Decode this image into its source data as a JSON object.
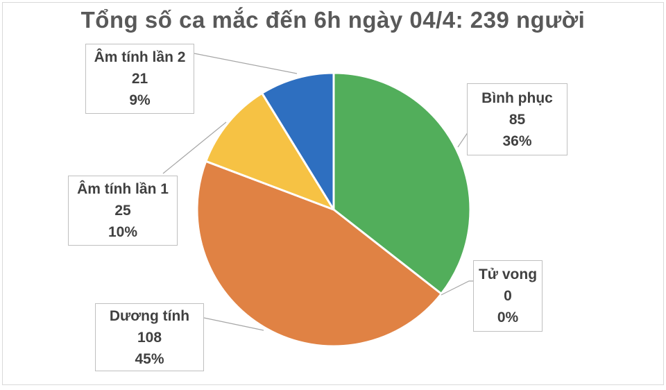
{
  "chart_data": {
    "type": "pie",
    "title": "Tổng số ca mắc đến 6h ngày 04/4: 239 người",
    "slices": [
      {
        "name": "Bình phục",
        "value": "85",
        "percent": "36%",
        "numeric": 85,
        "color": "#52ae5b"
      },
      {
        "name": "Tử vong",
        "value": "0",
        "percent": "0%",
        "numeric": 0,
        "color": "#a5a5a5"
      },
      {
        "name": "Dương tính",
        "value": "108",
        "percent": "45%",
        "numeric": 108,
        "color": "#e08244"
      },
      {
        "name": "Âm tính lần 1",
        "value": "25",
        "percent": "10%",
        "numeric": 25,
        "color": "#f6c244"
      },
      {
        "name": "Âm tính lần 2",
        "value": "21",
        "percent": "9%",
        "numeric": 21,
        "color": "#2e6fc0"
      }
    ]
  }
}
